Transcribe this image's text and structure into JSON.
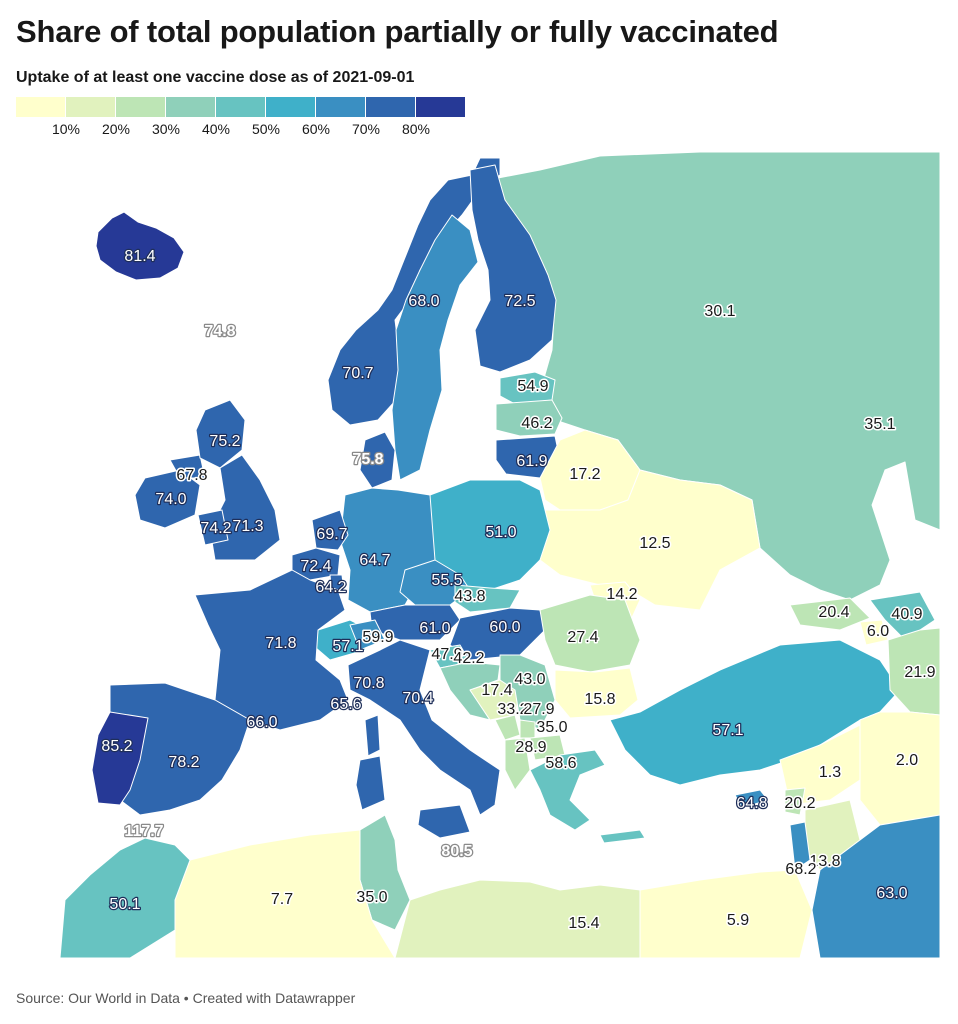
{
  "title": "Share of total population partially or fully vaccinated",
  "subtitle": "Uptake of at least one vaccine dose as of 2021-09-01",
  "legend": {
    "colors": [
      "#ffffcc",
      "#e1f2be",
      "#bde5b5",
      "#8fd0ba",
      "#67c3c1",
      "#3fb0c9",
      "#3a8fc2",
      "#2f66ae",
      "#263996"
    ],
    "ticks": [
      "10%",
      "20%",
      "30%",
      "40%",
      "50%",
      "60%",
      "70%",
      "80%"
    ]
  },
  "source": "Source: Our World in Data • Created with Datawrapper",
  "map_data": {
    "type": "choropleth",
    "values": [
      {
        "label": "81.4"
      },
      {
        "label": "74.8"
      },
      {
        "label": "68.0"
      },
      {
        "label": "72.5"
      },
      {
        "label": "30.1"
      },
      {
        "label": "70.7"
      },
      {
        "label": "54.9"
      },
      {
        "label": "46.2"
      },
      {
        "label": "35.1"
      },
      {
        "label": "75.2"
      },
      {
        "label": "75.8"
      },
      {
        "label": "61.9"
      },
      {
        "label": "17.2"
      },
      {
        "label": "67.8"
      },
      {
        "label": "74.0"
      },
      {
        "label": "74.2"
      },
      {
        "label": "71.3"
      },
      {
        "label": "69.7"
      },
      {
        "label": "64.7"
      },
      {
        "label": "51.0"
      },
      {
        "label": "12.5"
      },
      {
        "label": "72.4"
      },
      {
        "label": "64.2"
      },
      {
        "label": "55.5"
      },
      {
        "label": "43.8"
      },
      {
        "label": "14.2"
      },
      {
        "label": "20.4"
      },
      {
        "label": "40.9"
      },
      {
        "label": "6.0"
      },
      {
        "label": "71.8"
      },
      {
        "label": "57.1"
      },
      {
        "label": "59.9"
      },
      {
        "label": "61.0"
      },
      {
        "label": "60.0"
      },
      {
        "label": "27.4"
      },
      {
        "label": "21.9"
      },
      {
        "label": "47.9"
      },
      {
        "label": "42.2"
      },
      {
        "label": "43.0"
      },
      {
        "label": "70.8"
      },
      {
        "label": "70.4"
      },
      {
        "label": "17.4"
      },
      {
        "label": "15.8"
      },
      {
        "label": "65.6"
      },
      {
        "label": "66.0"
      },
      {
        "label": "33.2"
      },
      {
        "label": "27.9"
      },
      {
        "label": "35.0"
      },
      {
        "label": "57.1"
      },
      {
        "label": "85.2"
      },
      {
        "label": "78.2"
      },
      {
        "label": "28.9"
      },
      {
        "label": "1.3"
      },
      {
        "label": "2.0"
      },
      {
        "label": "58.6"
      },
      {
        "label": "64.8"
      },
      {
        "label": "20.2"
      },
      {
        "label": "117.7"
      },
      {
        "label": "80.5"
      },
      {
        "label": "13.8"
      },
      {
        "label": "68.2"
      },
      {
        "label": "50.1"
      },
      {
        "label": "7.7"
      },
      {
        "label": "35.0"
      },
      {
        "label": "63.0"
      },
      {
        "label": "15.4"
      },
      {
        "label": "5.9"
      }
    ]
  }
}
